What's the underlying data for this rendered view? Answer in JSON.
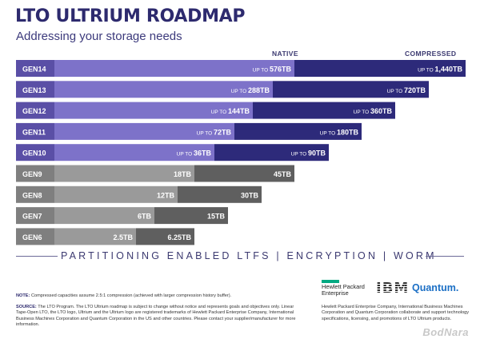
{
  "header": {
    "title": "LTO ULTRIUM ROADMAP",
    "subtitle": "Addressing your storage needs",
    "native_label": "NATIVE",
    "compressed_label": "COMPRESSED"
  },
  "chart_data": {
    "type": "bar",
    "categories": [
      "GEN14",
      "GEN13",
      "GEN12",
      "GEN11",
      "GEN10",
      "GEN9",
      "GEN8",
      "GEN7",
      "GEN6"
    ],
    "series": [
      {
        "name": "NATIVE",
        "values": [
          576,
          288,
          144,
          72,
          36,
          18,
          12,
          6,
          2.5
        ],
        "labels": [
          "UP TO 576TB",
          "UP TO 288TB",
          "UP TO 144TB",
          "UP TO 72TB",
          "UP TO 36TB",
          "18TB",
          "12TB",
          "6TB",
          "2.5TB"
        ]
      },
      {
        "name": "COMPRESSED",
        "values": [
          1440,
          720,
          360,
          180,
          90,
          45,
          30,
          15,
          6.25
        ],
        "labels": [
          "UP TO 1,440TB",
          "UP TO 720TB",
          "UP TO 360TB",
          "UP TO 180TB",
          "UP TO 90TB",
          "45TB",
          "30TB",
          "15TB",
          "6.25TB"
        ]
      }
    ],
    "future_generations": [
      "GEN14",
      "GEN13",
      "GEN12",
      "GEN11",
      "GEN10"
    ],
    "colors": {
      "future_label": "#5a4fa6",
      "future_native": "#7d72c9",
      "future_compressed": "#2d2a7a",
      "past_label": "#7f7f7f",
      "past_native": "#9a9a9a",
      "past_compressed": "#5f5f5f",
      "text": "#ffffff"
    }
  },
  "features": "PARTITIONING  ENABLED  LTFS  |  ENCRYPTION  |  WORM",
  "footer": {
    "note_label": "NOTE:",
    "note_text": "Compressed capacities assume 2.5:1 compression (achieved with larger compression history buffer).",
    "source_label": "SOURCE:",
    "source_text": "The LTO Program. The LTO Ultrium roadmap is subject to change without notice and represents goals and objectives only. Linear Tape-Open LTO, the LTO logo, Ultrium and the Ultrium logo are registered trademarks of Hewlett Packard Enterprise Company, International Business Machines Corporation and Quantum Corporation in the US and other countries. Please contact your supplier/manufacturer for more information.",
    "partner_text": "Hewlett Packard Enterprise Company, International Business Machines Corporation and Quantum Corporation collaborate and support technology specifications, licensing, and promotions of LTO Ultrium products."
  },
  "logos": {
    "hpe": "Hewlett Packard Enterprise",
    "ibm": "IBM",
    "quantum": "Quantum."
  },
  "watermark": "BodNara"
}
